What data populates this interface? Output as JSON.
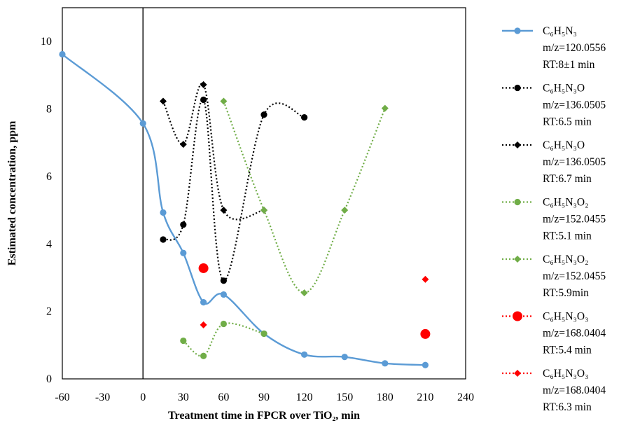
{
  "chart_data": {
    "type": "line",
    "xlabel": "Treatment time in FPCR over TiO₂, min",
    "ylabel": "Estimated concentration, ppm",
    "xlim": [
      -60,
      240
    ],
    "ylim": [
      0,
      11
    ],
    "xticks": [
      -60,
      -30,
      0,
      30,
      60,
      90,
      120,
      150,
      180,
      210,
      240
    ],
    "yticks": [
      0,
      2,
      4,
      6,
      8,
      10
    ],
    "vertical_reference_line_x": 0,
    "series": [
      {
        "name_lines": [
          "C₆H₅N₃",
          "m/z=120.0556",
          "RT:8±1 min"
        ],
        "color": "#5b9bd5",
        "marker": "circle",
        "line": "solid",
        "smooth": true,
        "x": [
          -60,
          0,
          15,
          30,
          45,
          60,
          90,
          120,
          150,
          180,
          210
        ],
        "y": [
          9.62,
          7.57,
          4.93,
          3.73,
          2.27,
          2.5,
          1.34,
          0.72,
          0.65,
          0.46,
          0.41
        ]
      },
      {
        "name_lines": [
          "C₆H₅N₃O",
          "m/z=136.0505",
          "RT:6.5 min"
        ],
        "color": "#000000",
        "marker": "circle",
        "line": "dotted",
        "smooth": true,
        "x": [
          15,
          30,
          45,
          60,
          90,
          120
        ],
        "y": [
          4.13,
          4.57,
          8.27,
          2.91,
          7.83,
          7.75
        ]
      },
      {
        "name_lines": [
          "C₆H₅N₃O",
          "m/z=136.0505",
          "RT:6.7 min"
        ],
        "color": "#000000",
        "marker": "diamond",
        "line": "dotted",
        "smooth": true,
        "x": [
          15,
          30,
          45,
          60,
          90
        ],
        "y": [
          8.23,
          6.95,
          8.72,
          5.0,
          5.0
        ]
      },
      {
        "name_lines": [
          "C₆H₅N₃O₂",
          "m/z=152.0455",
          "RT:5.1 min"
        ],
        "color": "#70ad47",
        "marker": "circle",
        "line": "dotted",
        "smooth": true,
        "x": [
          30,
          45,
          60,
          90
        ],
        "y": [
          1.13,
          0.68,
          1.63,
          1.34
        ]
      },
      {
        "name_lines": [
          "C₆H₅N₃O₂",
          "m/z=152.0455",
          "RT:5.9min"
        ],
        "color": "#70ad47",
        "marker": "diamond",
        "line": "dotted",
        "smooth": true,
        "x": [
          60,
          90,
          120,
          150,
          180
        ],
        "y": [
          8.23,
          5.0,
          2.55,
          5.0,
          8.02
        ]
      },
      {
        "name_lines": [
          "C₆H₅N₃O₃",
          "m/z=168.0404",
          "RT:5.4 min"
        ],
        "color": "#ff0000",
        "marker": "circle-large",
        "line": "none",
        "smooth": false,
        "x": [
          45,
          210
        ],
        "y": [
          3.28,
          1.33
        ]
      },
      {
        "name_lines": [
          "C₆H₅N₃O₃",
          "m/z=168.0404",
          "RT:6.3 min"
        ],
        "color": "#ff0000",
        "marker": "diamond",
        "line": "none",
        "smooth": false,
        "x": [
          45,
          210
        ],
        "y": [
          1.6,
          2.95
        ]
      }
    ]
  }
}
